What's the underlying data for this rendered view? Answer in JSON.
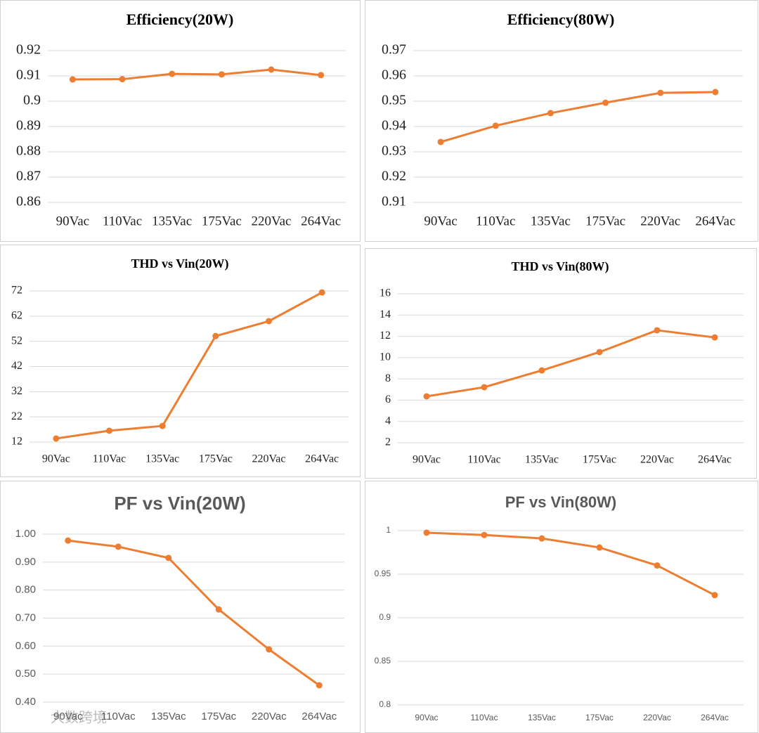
{
  "chart_data": [
    {
      "type": "line",
      "title": "Efficiency(20W)",
      "categories": [
        "90Vac",
        "110Vac",
        "135Vac",
        "175Vac",
        "220Vac",
        "264Vac"
      ],
      "values": [
        0.9086,
        0.9087,
        0.9108,
        0.9106,
        0.9125,
        0.9103
      ],
      "color": "#ed7d31",
      "ylim": [
        0.86,
        0.92
      ],
      "yticks": [
        0.86,
        0.87,
        0.88,
        0.89,
        0.9,
        0.91,
        0.92
      ],
      "grid": true
    },
    {
      "type": "line",
      "title": "Efficiency(80W)",
      "categories": [
        "90Vac",
        "110Vac",
        "135Vac",
        "175Vac",
        "220Vac",
        "264Vac"
      ],
      "values": [
        0.9339,
        0.9403,
        0.9453,
        0.9494,
        0.9533,
        0.9536
      ],
      "color": "#ed7d31",
      "ylim": [
        0.91,
        0.97
      ],
      "yticks": [
        0.91,
        0.92,
        0.93,
        0.94,
        0.95,
        0.96,
        0.97
      ],
      "grid": true
    },
    {
      "type": "line",
      "title": "THD vs Vin(20W)",
      "categories": [
        "90Vac",
        "110Vac",
        "135Vac",
        "175Vac",
        "220Vac",
        "264Vac"
      ],
      "values": [
        13.4,
        16.5,
        18.4,
        54.1,
        60.0,
        71.4
      ],
      "color": "#ed7d31",
      "ylim": [
        12,
        72
      ],
      "yticks": [
        12,
        22,
        32,
        42,
        52,
        62,
        72
      ],
      "grid": true
    },
    {
      "type": "line",
      "title": "THD vs Vin(80W)",
      "categories": [
        "90Vac",
        "110Vac",
        "135Vac",
        "175Vac",
        "220Vac",
        "264Vac"
      ],
      "values": [
        6.36,
        7.22,
        8.8,
        10.52,
        12.57,
        11.9
      ],
      "color": "#ed7d31",
      "ylim": [
        2,
        16
      ],
      "yticks": [
        2,
        4,
        6,
        8,
        10,
        12,
        14,
        16
      ],
      "grid": true
    },
    {
      "type": "line",
      "title": "PF vs Vin(20W)",
      "categories": [
        "90Vac",
        "110Vac",
        "135Vac",
        "175Vac",
        "220Vac",
        "264Vac"
      ],
      "values": [
        0.977,
        0.955,
        0.915,
        0.731,
        0.588,
        0.46
      ],
      "color": "#ed7d31",
      "ylim": [
        0.4,
        1.0
      ],
      "yticks": [
        {
          "value": 0.4,
          "label": "0.40"
        },
        {
          "value": 0.5,
          "label": "0.50"
        },
        {
          "value": 0.6,
          "label": "0.60"
        },
        {
          "value": 0.7,
          "label": "0.70"
        },
        {
          "value": 0.8,
          "label": "0.80"
        },
        {
          "value": 0.9,
          "label": "0.90"
        },
        {
          "value": 1.0,
          "label": "1.00"
        }
      ],
      "grid": true
    },
    {
      "type": "line",
      "title": "PF vs Vin(80W)",
      "categories": [
        "90Vac",
        "110Vac",
        "135Vac",
        "175Vac",
        "220Vac",
        "264Vac"
      ],
      "values": [
        0.9976,
        0.995,
        0.991,
        0.9806,
        0.96,
        0.926
      ],
      "color": "#ed7d31",
      "ylim": [
        0.8,
        1
      ],
      "yticks": [
        0.8,
        0.85,
        0.9,
        0.95,
        1
      ],
      "grid": true
    }
  ],
  "watermark": "大数跨境"
}
